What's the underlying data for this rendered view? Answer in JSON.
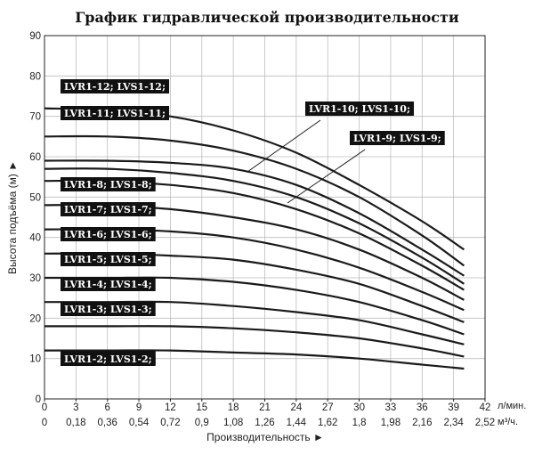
{
  "chart_data": {
    "type": "line",
    "title": "График гидравлической производительности",
    "xlabel": "Производительность ►",
    "ylabel": "Высота подъёма (м) ►",
    "x_unit": "л/мин.",
    "x2_unit": "м³/ч.",
    "xlim": [
      0,
      42
    ],
    "ylim": [
      0,
      90
    ],
    "x_ticks": [
      0,
      3,
      6,
      9,
      12,
      15,
      18,
      21,
      24,
      27,
      30,
      33,
      36,
      39,
      42
    ],
    "x2_ticks": [
      "0",
      "0,18",
      "0,36",
      "0,54",
      "0,72",
      "0,9",
      "1,08",
      "1,26",
      "1,44",
      "1,62",
      "1,8",
      "1,98",
      "2,16",
      "2,34",
      "2,52"
    ],
    "y_ticks": [
      0,
      10,
      20,
      30,
      40,
      50,
      60,
      70,
      80,
      90
    ],
    "grid": true,
    "x": [
      0,
      6,
      12,
      18,
      24,
      30,
      36,
      40
    ],
    "series": [
      {
        "name": "LVR1-12; LVS1-12;",
        "values": [
          72,
          71.5,
          70,
          66.5,
          61,
          53,
          44,
          37
        ]
      },
      {
        "name": "LVR1-11; LVS1-11;",
        "values": [
          65,
          65,
          64,
          61.5,
          57,
          50,
          40.5,
          33
        ]
      },
      {
        "name": "LVR1-10; LVS1-10;",
        "values": [
          59,
          59,
          58.5,
          57,
          53,
          46,
          37,
          30.5
        ]
      },
      {
        "name": "LVR1-9; LVS1-9;",
        "values": [
          57,
          57,
          56,
          54,
          50,
          43.5,
          35,
          28.5
        ]
      },
      {
        "name": "LVR1-8; LVS1-8;",
        "values": [
          54,
          54,
          53,
          51,
          47,
          41,
          33,
          27
        ]
      },
      {
        "name": "LVR1-7; LVS1-7;",
        "values": [
          48,
          48,
          47,
          45,
          42,
          37,
          30,
          24.5
        ]
      },
      {
        "name": "LVR1-6; LVS1-6;",
        "values": [
          42,
          42,
          41.5,
          40,
          37,
          32.5,
          26.5,
          22
        ]
      },
      {
        "name": "LVR1-5; LVS1-5;",
        "values": [
          36,
          36,
          35.5,
          34.5,
          32,
          28.5,
          23,
          19
        ]
      },
      {
        "name": "LVR1-4; LVS1-4;",
        "values": [
          30,
          30,
          30,
          29,
          27,
          24,
          19.5,
          16
        ]
      },
      {
        "name": "LVR1-3; LVS1-3;",
        "values": [
          24,
          24,
          24,
          23,
          21.5,
          19.5,
          16,
          13.5
        ]
      },
      {
        "name": "LVR1-3; LVS1-3;",
        "values": [
          18,
          18,
          18,
          17.5,
          16.5,
          15,
          12.5,
          10.5
        ]
      },
      {
        "name": "LVR1-2; LVS1-2;",
        "values": [
          12,
          12,
          12,
          11.5,
          11,
          10,
          8.5,
          7.5
        ]
      }
    ]
  }
}
